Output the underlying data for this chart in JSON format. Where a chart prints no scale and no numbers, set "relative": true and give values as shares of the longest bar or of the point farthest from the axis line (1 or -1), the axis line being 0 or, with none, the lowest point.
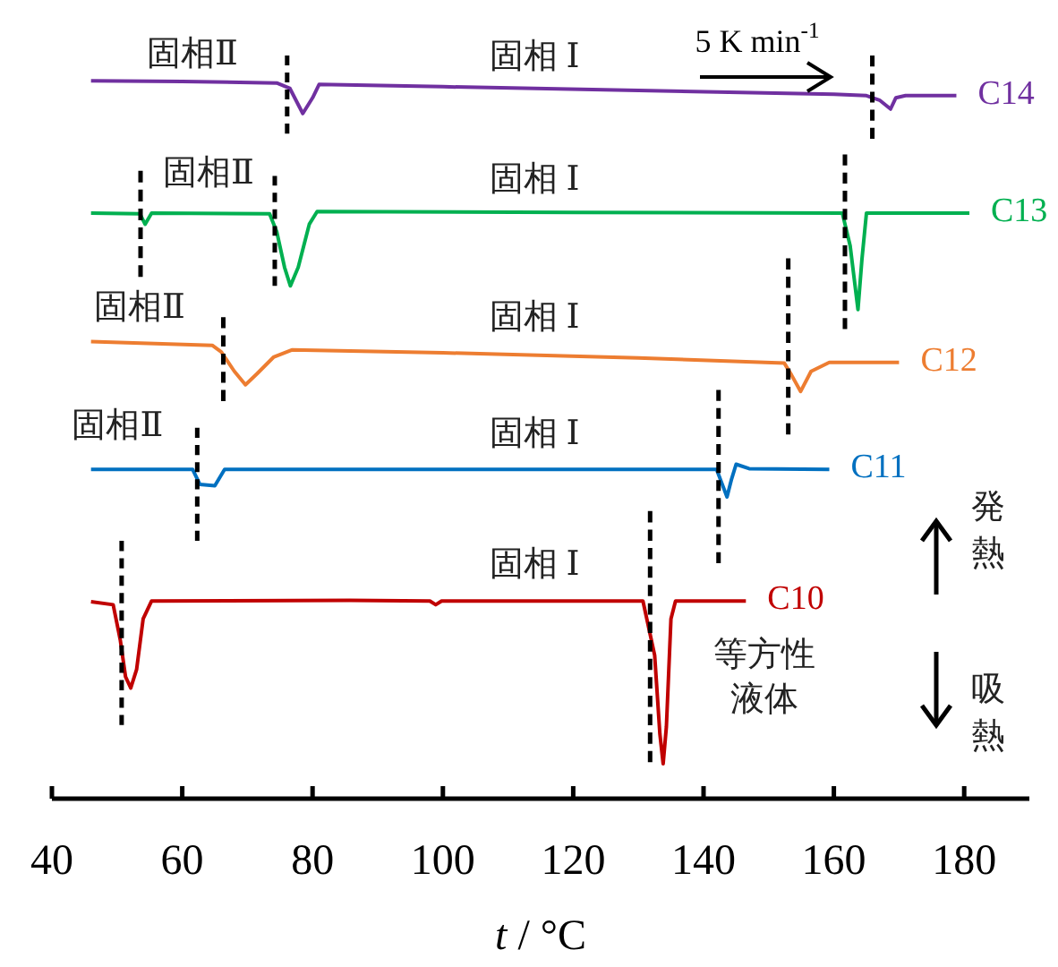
{
  "chart_data": {
    "type": "line",
    "relative": true,
    "xlabel": "t / °C",
    "xlim": [
      40,
      190
    ],
    "xticks": [
      40,
      60,
      80,
      100,
      120,
      140,
      160,
      180
    ],
    "series": [
      {
        "name": "C14",
        "color": "#7030a0",
        "x": [
          46,
          60,
          74.5,
          76.5,
          78.5,
          80,
          81,
          100,
          130,
          160,
          165,
          167,
          168.7,
          169.5,
          171,
          178.8
        ],
        "values": [
          0.966,
          0.965,
          0.963,
          0.956,
          0.922,
          0.943,
          0.961,
          0.958,
          0.953,
          0.948,
          0.946,
          0.94,
          0.928,
          0.943,
          0.946,
          0.946
        ]
      },
      {
        "name": "C13",
        "color": "#00b050",
        "x": [
          46,
          53.5,
          54.3,
          55.3,
          73.4,
          74.5,
          75.7,
          76.6,
          77.8,
          79.5,
          80.7,
          120,
          161.3,
          162.5,
          163.7,
          164.3,
          165,
          180.8
        ],
        "values": [
          0.788,
          0.787,
          0.773,
          0.788,
          0.787,
          0.763,
          0.715,
          0.69,
          0.715,
          0.773,
          0.79,
          0.789,
          0.788,
          0.744,
          0.658,
          0.725,
          0.788,
          0.788
        ]
      },
      {
        "name": "C12",
        "color": "#ed7d31",
        "x": [
          46,
          64.6,
          66,
          68,
          69.7,
          71.5,
          74,
          76.9,
          100,
          130,
          152.4,
          153.5,
          154.9,
          156.5,
          159.3,
          170
        ],
        "values": [
          0.615,
          0.61,
          0.601,
          0.575,
          0.557,
          0.572,
          0.594,
          0.604,
          0.6,
          0.593,
          0.586,
          0.57,
          0.548,
          0.575,
          0.587,
          0.587
        ]
      },
      {
        "name": "C11",
        "color": "#0070c0",
        "x": [
          46,
          61.6,
          62.7,
          65,
          66.5,
          100,
          142,
          143,
          143.6,
          144.3,
          145,
          147,
          159.3
        ],
        "values": [
          0.443,
          0.443,
          0.423,
          0.421,
          0.443,
          0.443,
          0.443,
          0.42,
          0.406,
          0.43,
          0.45,
          0.444,
          0.443
        ]
      },
      {
        "name": "C10",
        "color": "#c00000",
        "x": [
          46,
          49.4,
          50.5,
          51.3,
          52.1,
          53,
          54,
          55.3,
          85.7,
          98,
          98.9,
          99.8,
          130.7,
          132.5,
          133.3,
          133.8,
          134.3,
          135,
          135.7,
          146.5
        ],
        "values": [
          0.265,
          0.261,
          0.213,
          0.164,
          0.149,
          0.174,
          0.242,
          0.266,
          0.267,
          0.266,
          0.261,
          0.266,
          0.266,
          0.193,
          0.087,
          0.047,
          0.097,
          0.242,
          0.266,
          0.266
        ]
      },
      {
        "color": "#000000",
        "line_style": "dashed",
        "x": [
          76.1,
          76.1
        ],
        "values": [
          1.0,
          0.895
        ]
      },
      {
        "color": "#000000",
        "line_style": "dashed",
        "x": [
          165.9,
          165.9
        ],
        "values": [
          1.0,
          0.888
        ]
      },
      {
        "color": "#000000",
        "line_style": "dashed",
        "x": [
          53.6,
          53.6
        ],
        "values": [
          0.845,
          0.702
        ]
      },
      {
        "color": "#000000",
        "line_style": "dashed",
        "x": [
          74.2,
          74.2
        ],
        "values": [
          0.838,
          0.69
        ]
      },
      {
        "color": "#000000",
        "line_style": "dashed",
        "x": [
          161.7,
          161.7
        ],
        "values": [
          0.867,
          0.632
        ]
      },
      {
        "color": "#000000",
        "line_style": "dashed",
        "x": [
          66.3,
          66.3
        ],
        "values": [
          0.648,
          0.535
        ]
      },
      {
        "color": "#000000",
        "line_style": "dashed",
        "x": [
          153,
          153
        ],
        "values": [
          0.727,
          0.49
        ]
      },
      {
        "color": "#000000",
        "line_style": "dashed",
        "x": [
          62.3,
          62.3
        ],
        "values": [
          0.499,
          0.347
        ]
      },
      {
        "color": "#000000",
        "line_style": "dashed",
        "x": [
          142.3,
          142.3
        ],
        "values": [
          0.55,
          0.317
        ]
      },
      {
        "color": "#000000",
        "line_style": "dashed",
        "x": [
          50.7,
          50.7
        ],
        "values": [
          0.347,
          0.099
        ]
      },
      {
        "color": "#000000",
        "line_style": "dashed",
        "x": [
          131.8,
          131.8
        ],
        "values": [
          0.387,
          0.049
        ]
      }
    ],
    "annotations": [
      "固相Ⅱ",
      "固相 Ⅰ",
      "固相Ⅱ",
      "固相 Ⅰ",
      "固相Ⅱ",
      "固相 Ⅰ",
      "固相Ⅱ",
      "固相 Ⅰ",
      "固相 Ⅰ",
      "等方性液体",
      "5 K min$^{-1}$",
      "発熱",
      "吸熱"
    ]
  }
}
